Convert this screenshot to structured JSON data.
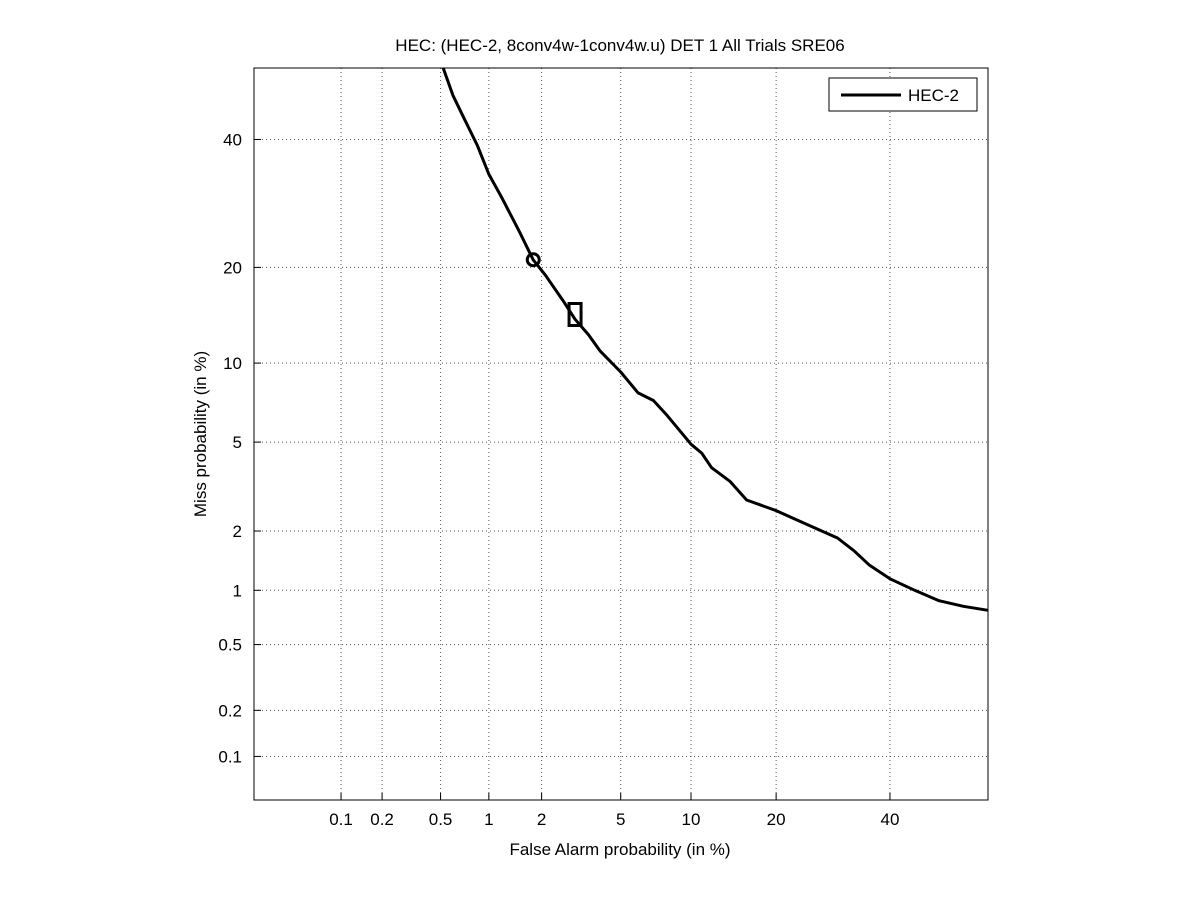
{
  "chart_data": {
    "type": "line",
    "title": "HEC: (HEC-2, 8conv4w-1conv4w.u) DET 1 All Trials SRE06",
    "xlabel": "False Alarm probability (in %)",
    "ylabel": "Miss probability (in %)",
    "x_scale": "probit",
    "y_scale": "probit",
    "xlim": [
      0.02,
      60
    ],
    "ylim": [
      0.05,
      53
    ],
    "x_ticks": [
      0.1,
      0.2,
      0.5,
      1,
      2,
      5,
      10,
      20,
      40
    ],
    "x_tick_labels": [
      "0.1",
      "0.2",
      "0.5",
      "1",
      "2",
      "5",
      "10",
      "20",
      "40"
    ],
    "y_ticks": [
      0.1,
      0.2,
      0.5,
      1,
      2,
      5,
      10,
      20,
      40
    ],
    "y_tick_labels": [
      "0.1",
      "0.2",
      "0.5",
      "1",
      "2",
      "5",
      "10",
      "20",
      "40"
    ],
    "grid": true,
    "legend_position": "top-right",
    "series": [
      {
        "name": "HEC-2",
        "color": "#000000",
        "points": [
          [
            0.52,
            53
          ],
          [
            0.6,
            48
          ],
          [
            0.7,
            44
          ],
          [
            0.85,
            39
          ],
          [
            1.0,
            34
          ],
          [
            1.2,
            30
          ],
          [
            1.5,
            25
          ],
          [
            1.8,
            21
          ],
          [
            2.1,
            19
          ],
          [
            2.6,
            16
          ],
          [
            3.0,
            14
          ],
          [
            3.5,
            12.5
          ],
          [
            4.0,
            11
          ],
          [
            5.0,
            9.3
          ],
          [
            6.0,
            7.8
          ],
          [
            7.0,
            7.3
          ],
          [
            8.0,
            6.4
          ],
          [
            10.0,
            4.9
          ],
          [
            11.0,
            4.5
          ],
          [
            12.0,
            3.9
          ],
          [
            14.0,
            3.4
          ],
          [
            16.0,
            2.8
          ],
          [
            20.0,
            2.5
          ],
          [
            24.0,
            2.2
          ],
          [
            30.0,
            1.85
          ],
          [
            33.0,
            1.6
          ],
          [
            36.0,
            1.35
          ],
          [
            40.0,
            1.15
          ],
          [
            45.0,
            1.0
          ],
          [
            50.0,
            0.88
          ],
          [
            55.0,
            0.82
          ],
          [
            60.0,
            0.78
          ]
        ]
      }
    ],
    "markers": [
      {
        "shape": "circle",
        "x": 1.8,
        "y": 21
      },
      {
        "shape": "square",
        "x": 3.0,
        "y": 14.5
      }
    ]
  }
}
